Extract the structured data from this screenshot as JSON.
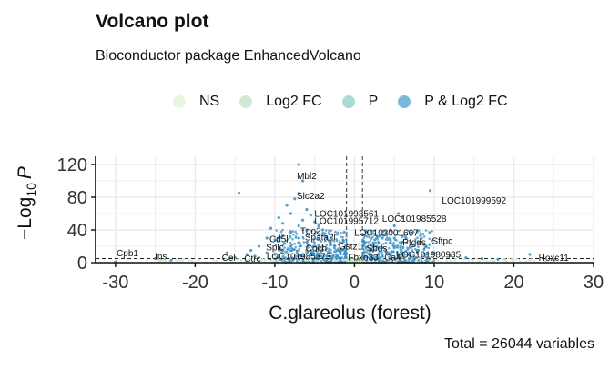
{
  "chart_data": {
    "type": "scatter",
    "title": "Volcano plot",
    "subtitle": "Bioconductor package EnhancedVolcano",
    "xlabel": "C.glareolus (forest)",
    "ylabel_prefix": "−Log",
    "ylabel_sub": "10",
    "ylabel_var": "P",
    "caption": "Total = 26044 variables",
    "xlim": [
      -32.5,
      30
    ],
    "ylim": [
      0,
      130
    ],
    "xticks": [
      -30,
      -20,
      -10,
      0,
      10,
      20,
      30
    ],
    "xtick_labels": [
      "-30",
      "-20",
      "-10",
      "0",
      "10",
      "20",
      "30"
    ],
    "yticks": [
      0,
      40,
      80,
      120
    ],
    "ytick_labels": [
      "0",
      "40",
      "80",
      "120"
    ],
    "fc_cutoffs": [
      -1,
      1
    ],
    "p_cutoff_y": 5,
    "grid": true,
    "legend_position": "top",
    "legend": [
      {
        "label": "NS",
        "color": "#e8f5e0"
      },
      {
        "label": "Log2 FC",
        "color": "#cfe9d4"
      },
      {
        "label": "P",
        "color": "#a9dbd6"
      },
      {
        "label": "P & Log2 FC",
        "color": "#7ab9dc"
      }
    ],
    "point_color": "#3a8fc6",
    "points": [
      [
        -30,
        1
      ],
      [
        -25,
        5
      ],
      [
        -23,
        3
      ],
      [
        -16,
        12
      ],
      [
        -14.5,
        85
      ],
      [
        -15,
        6
      ],
      [
        -13.5,
        10
      ],
      [
        -12.5,
        8
      ],
      [
        -11,
        30
      ],
      [
        -10.5,
        42
      ],
      [
        -9.5,
        55
      ],
      [
        -9,
        48
      ],
      [
        -8.5,
        70
      ],
      [
        -8,
        60
      ],
      [
        -7.5,
        78
      ],
      [
        -7,
        85
      ],
      [
        -7,
        120
      ],
      [
        -6.5,
        100
      ],
      [
        -6,
        65
      ],
      [
        -5.5,
        58
      ],
      [
        -5,
        50
      ],
      [
        -4.5,
        45
      ],
      [
        -4,
        40
      ],
      [
        -3.5,
        30
      ],
      [
        -3,
        25
      ],
      [
        -2.5,
        20
      ],
      [
        -2,
        15
      ],
      [
        -6,
        25
      ],
      [
        -7,
        30
      ],
      [
        -8,
        20
      ],
      [
        -9,
        15
      ],
      [
        -10,
        10
      ],
      [
        -11,
        12
      ],
      [
        -5,
        20
      ],
      [
        -4,
        15
      ],
      [
        -3,
        12
      ],
      [
        -12,
        20
      ],
      [
        -13,
        15
      ],
      [
        -6,
        40
      ],
      [
        -5,
        35
      ],
      [
        -8,
        38
      ],
      [
        -9,
        33
      ],
      [
        -10,
        28
      ],
      [
        -7,
        45
      ],
      [
        -6.5,
        52
      ],
      [
        -5.5,
        15
      ],
      [
        -4.5,
        10
      ],
      [
        -3.5,
        8
      ],
      [
        2,
        15
      ],
      [
        2.5,
        20
      ],
      [
        3,
        25
      ],
      [
        3.5,
        30
      ],
      [
        4,
        35
      ],
      [
        4.5,
        40
      ],
      [
        5,
        45
      ],
      [
        5.5,
        60
      ],
      [
        6,
        55
      ],
      [
        7,
        20
      ],
      [
        8,
        15
      ],
      [
        9,
        10
      ],
      [
        9.5,
        88
      ],
      [
        10,
        12
      ],
      [
        12,
        8
      ],
      [
        14,
        6
      ],
      [
        16,
        5
      ],
      [
        18,
        4
      ],
      [
        22,
        10
      ],
      [
        25,
        3
      ],
      [
        3,
        10
      ],
      [
        4,
        12
      ],
      [
        5,
        18
      ],
      [
        6,
        25
      ],
      [
        2,
        8
      ],
      [
        3,
        6
      ],
      [
        6,
        10
      ],
      [
        7,
        8
      ],
      [
        8,
        25
      ],
      [
        9,
        20
      ],
      [
        4.5,
        28
      ],
      [
        5,
        30
      ],
      [
        3.5,
        18
      ]
    ],
    "labels": [
      {
        "text": "Mbl2",
        "x": -6,
        "y": 102
      },
      {
        "text": "Slc2a2",
        "x": -5.5,
        "y": 78
      },
      {
        "text": "LOC101999592",
        "x": 15,
        "y": 72
      },
      {
        "text": "LOC101993561",
        "x": -1,
        "y": 56
      },
      {
        "text": "LOC101995712",
        "x": -1,
        "y": 47
      },
      {
        "text": "LOC101985528",
        "x": 7.5,
        "y": 50
      },
      {
        "text": "Tdo2",
        "x": -5.5,
        "y": 35
      },
      {
        "text": "LOC102001667",
        "x": 4,
        "y": 33
      },
      {
        "text": "Cd5l",
        "x": -9.5,
        "y": 25
      },
      {
        "text": "Spata2l",
        "x": -4.3,
        "y": 27
      },
      {
        "text": "Sftpc",
        "x": 11,
        "y": 23
      },
      {
        "text": "Ptgds",
        "x": 7.5,
        "y": 21
      },
      {
        "text": "Splc",
        "x": -10,
        "y": 15
      },
      {
        "text": "Coch",
        "x": -4.8,
        "y": 14
      },
      {
        "text": "Gstz1",
        "x": -0.5,
        "y": 16
      },
      {
        "text": "Sbds",
        "x": 2.8,
        "y": 14
      },
      {
        "text": "Cpb1",
        "x": -28.5,
        "y": 8
      },
      {
        "text": "Ins",
        "x": -24.3,
        "y": 4
      },
      {
        "text": "LOC101980935",
        "x": 9.3,
        "y": 6
      },
      {
        "text": "LOC101985373",
        "x": -7,
        "y": 4
      },
      {
        "text": "Fbxo33",
        "x": 1.1,
        "y": 3
      },
      {
        "text": "Ca4",
        "x": 4.8,
        "y": 3
      },
      {
        "text": "Cel",
        "x": -15.8,
        "y": 2
      },
      {
        "text": "Ctrc",
        "x": -12.8,
        "y": 1
      },
      {
        "text": "Hoxc11",
        "x": 25,
        "y": 2
      }
    ]
  }
}
